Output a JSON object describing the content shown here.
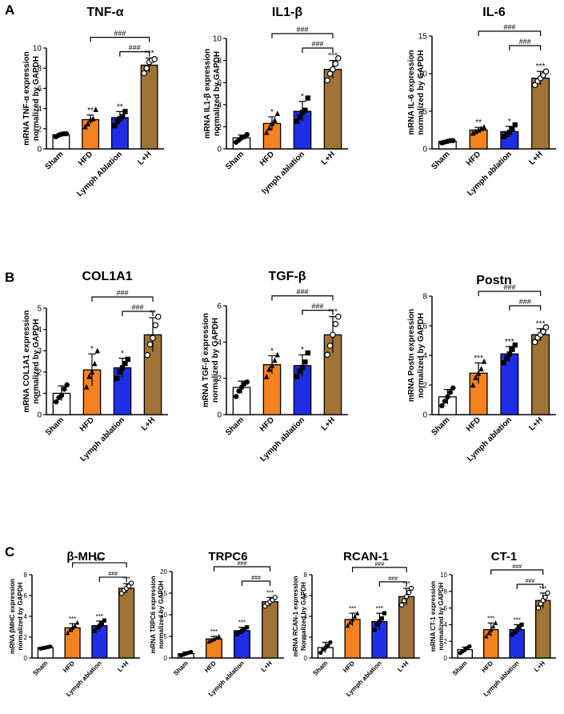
{
  "panels": [
    {
      "label": "A"
    },
    {
      "label": "B"
    },
    {
      "label": "C"
    }
  ],
  "colors": {
    "sham": "#ffffff",
    "hfd": "#f5821f",
    "lymph": "#1f2ee6",
    "lh": "#a07336",
    "outline": "#000000"
  },
  "chart_data": [
    {
      "type": "bar",
      "panel": "A",
      "title": "TNF-α",
      "ylabel": [
        "mRNA TNF-α expression",
        "normalized by GAPDH"
      ],
      "categories": [
        "Sham",
        "HFD",
        "Lymph Ablation",
        "L+H"
      ],
      "values": [
        1.4,
        2.9,
        3.1,
        8.3
      ],
      "errors": [
        0.15,
        0.45,
        0.6,
        0.7
      ],
      "points": [
        [
          1.2,
          1.35,
          1.45,
          1.5,
          1.5
        ],
        [
          2.2,
          2.5,
          2.9,
          3.0,
          3.9
        ],
        [
          2.3,
          2.7,
          3.0,
          3.2,
          3.7
        ],
        [
          7.5,
          8.0,
          8.6,
          8.8,
          8.9
        ]
      ],
      "markers": [
        "circle",
        "triangle",
        "square",
        "open-circle"
      ],
      "ylim": [
        0,
        10
      ],
      "yticks": [
        0,
        2,
        4,
        6,
        8,
        10
      ],
      "stars": [
        "",
        "**",
        "**",
        "***"
      ],
      "brackets": [
        "###",
        "###"
      ]
    },
    {
      "type": "bar",
      "panel": "A",
      "title": "IL1-β",
      "ylabel": [
        "mRNA IL1-β expression",
        "normalized by GAPDH"
      ],
      "categories": [
        "Sham",
        "HFD",
        "lymph ablation",
        "L+H"
      ],
      "values": [
        1.0,
        2.3,
        3.4,
        7.2
      ],
      "errors": [
        0.25,
        0.6,
        0.9,
        0.8
      ],
      "points": [
        [
          0.6,
          0.8,
          1.0,
          1.1,
          1.3
        ],
        [
          1.5,
          1.9,
          2.3,
          2.6,
          3.2
        ],
        [
          2.5,
          2.9,
          3.3,
          3.5,
          4.6
        ],
        [
          6.2,
          6.8,
          7.2,
          7.7,
          8.2
        ]
      ],
      "markers": [
        "circle",
        "triangle",
        "square",
        "open-circle"
      ],
      "ylim": [
        0,
        10
      ],
      "yticks": [
        0,
        2,
        4,
        6,
        8,
        10
      ],
      "stars": [
        "",
        "*",
        "*",
        "***"
      ],
      "brackets": [
        "###",
        "###"
      ]
    },
    {
      "type": "bar",
      "panel": "A",
      "title": "IL-6",
      "ylabel": [
        "mRNA IL-6 expression",
        "normalized by GAPDH"
      ],
      "categories": [
        "Sham",
        "HFD",
        "Lymph ablation",
        "L+H"
      ],
      "values": [
        1.0,
        2.5,
        2.3,
        9.4
      ],
      "errors": [
        0.1,
        0.35,
        0.7,
        0.9
      ],
      "points": [
        [
          0.8,
          0.9,
          1.0,
          1.1,
          1.1
        ],
        [
          2.1,
          2.3,
          2.5,
          2.7,
          2.9
        ],
        [
          1.6,
          1.9,
          2.2,
          2.6,
          3.2
        ],
        [
          8.5,
          9.0,
          9.4,
          9.8,
          10.3
        ]
      ],
      "markers": [
        "circle",
        "triangle",
        "square",
        "open-circle"
      ],
      "ylim": [
        0,
        15
      ],
      "yticks": [
        0,
        5,
        10,
        15
      ],
      "stars": [
        "",
        "**",
        "*",
        "***"
      ],
      "brackets": [
        "###",
        "###"
      ]
    },
    {
      "type": "bar",
      "panel": "B",
      "title": "COL1A1",
      "ylabel": [
        "mRNA COL1A1 expression",
        "normalized by GAPDH"
      ],
      "categories": [
        "Sham",
        "HFD",
        "Lymph ablation",
        "L+H"
      ],
      "values": [
        1.0,
        2.1,
        2.2,
        3.75
      ],
      "errors": [
        0.35,
        0.75,
        0.45,
        0.8
      ],
      "points": [
        [
          0.6,
          0.8,
          0.9,
          1.2,
          1.4
        ],
        [
          1.3,
          1.8,
          2.0,
          2.4,
          3.0
        ],
        [
          1.7,
          2.0,
          2.2,
          2.4,
          2.6
        ],
        [
          2.8,
          3.3,
          3.6,
          4.2,
          4.6
        ]
      ],
      "markers": [
        "circle",
        "triangle",
        "square",
        "open-circle"
      ],
      "ylim": [
        0,
        5
      ],
      "yticks": [
        0,
        1,
        2,
        3,
        4,
        5
      ],
      "stars": [
        "",
        "*",
        "*",
        "**"
      ],
      "brackets": [
        "###",
        "###"
      ]
    },
    {
      "type": "bar",
      "panel": "B",
      "title": "TGF-β",
      "ylabel": [
        "mRNA TGF-β expression",
        "normalized by GAPDH"
      ],
      "categories": [
        "Sham",
        "HFD",
        "Lymph ablation",
        "L+H"
      ],
      "values": [
        1.5,
        2.75,
        2.7,
        4.4
      ],
      "errors": [
        0.35,
        0.5,
        0.6,
        1.0
      ],
      "points": [
        [
          1.0,
          1.3,
          1.5,
          1.7,
          1.8
        ],
        [
          2.1,
          2.5,
          2.7,
          3.0,
          3.3
        ],
        [
          2.1,
          2.4,
          2.6,
          2.9,
          3.4
        ],
        [
          3.3,
          3.8,
          4.4,
          5.0,
          5.4
        ]
      ],
      "markers": [
        "circle",
        "triangle",
        "square",
        "open-circle"
      ],
      "ylim": [
        0,
        6
      ],
      "yticks": [
        0,
        2,
        4,
        6
      ],
      "stars": [
        "",
        "*",
        "*",
        "***"
      ],
      "brackets": [
        "###",
        "###"
      ]
    },
    {
      "type": "bar",
      "panel": "B",
      "title": "Postn",
      "ylabel": [
        "mRNA Postn expression",
        "normalized by GAPDH"
      ],
      "categories": [
        "Sham",
        "HFD",
        "Lymph ablation",
        "L+H"
      ],
      "values": [
        1.2,
        2.8,
        4.1,
        5.4
      ],
      "errors": [
        0.5,
        0.7,
        0.5,
        0.4
      ],
      "points": [
        [
          0.6,
          0.9,
          1.2,
          1.5,
          1.8
        ],
        [
          2.0,
          2.5,
          2.8,
          3.1,
          3.6
        ],
        [
          3.5,
          3.8,
          4.1,
          4.4,
          4.7
        ],
        [
          4.9,
          5.2,
          5.4,
          5.6,
          5.9
        ]
      ],
      "markers": [
        "circle",
        "triangle",
        "square",
        "open-circle"
      ],
      "ylim": [
        0,
        8
      ],
      "yticks": [
        0,
        2,
        4,
        6,
        8
      ],
      "stars": [
        "",
        "***",
        "***",
        "***"
      ],
      "brackets": [
        "###",
        "###"
      ]
    },
    {
      "type": "bar",
      "panel": "C",
      "title": "β-MHC",
      "ylabel": [
        "mRNA βMHC expression",
        "normalized by GAPDH"
      ],
      "categories": [
        "Sham",
        "HFD",
        "Lymph ablation",
        "L+H"
      ],
      "values": [
        1.0,
        2.9,
        3.1,
        6.7
      ],
      "errors": [
        0.1,
        0.4,
        0.45,
        0.45
      ],
      "points": [
        [
          0.9,
          0.95,
          1.0,
          1.05,
          1.1
        ],
        [
          2.4,
          2.7,
          2.9,
          3.1,
          3.4
        ],
        [
          2.6,
          2.9,
          3.1,
          3.3,
          3.6
        ],
        [
          6.2,
          6.5,
          6.7,
          6.9,
          7.2
        ]
      ],
      "markers": [
        "circle",
        "triangle",
        "square",
        "open-circle"
      ],
      "ylim": [
        0,
        8
      ],
      "yticks": [
        0,
        2,
        4,
        6,
        8
      ],
      "stars": [
        "",
        "***",
        "***",
        "***"
      ],
      "brackets": [
        "###",
        "###"
      ]
    },
    {
      "type": "bar",
      "panel": "C",
      "title": "TRPC6",
      "ylabel": [
        "mRNA TRPC6 expression",
        "normalized by GAPDH"
      ],
      "categories": [
        "Sham",
        "HFD",
        "Lymph ablation",
        "L+H"
      ],
      "values": [
        1.0,
        4.4,
        6.3,
        13.0
      ],
      "errors": [
        0.4,
        0.6,
        0.8,
        1.0
      ],
      "points": [
        [
          0.6,
          0.8,
          1.0,
          1.2,
          1.4
        ],
        [
          3.8,
          4.1,
          4.4,
          4.7,
          5.0
        ],
        [
          5.5,
          6.0,
          6.3,
          6.6,
          7.1
        ],
        [
          12.0,
          12.6,
          13.0,
          13.4,
          14.0
        ]
      ],
      "markers": [
        "circle",
        "triangle",
        "square",
        "open-circle"
      ],
      "ylim": [
        0,
        20
      ],
      "yticks": [
        0,
        5,
        10,
        15,
        20
      ],
      "stars": [
        "",
        "***",
        "***",
        "***"
      ],
      "brackets": [
        "###",
        "###"
      ]
    },
    {
      "type": "bar",
      "panel": "C",
      "title": "RCAN-1",
      "ylabel": [
        "mRNA RCAN-1 expression",
        "Normalized by GAPDH"
      ],
      "categories": [
        "Sham",
        "HFD",
        "Lymph ablation",
        "L+H"
      ],
      "values": [
        1.0,
        3.7,
        3.5,
        5.9
      ],
      "errors": [
        0.5,
        0.6,
        0.8,
        0.8
      ],
      "points": [
        [
          0.5,
          0.8,
          1.0,
          1.2,
          1.5
        ],
        [
          3.1,
          3.4,
          3.7,
          4.0,
          4.3
        ],
        [
          2.7,
          3.2,
          3.5,
          3.8,
          4.3
        ],
        [
          5.1,
          5.5,
          5.9,
          6.3,
          6.7
        ]
      ],
      "markers": [
        "circle",
        "triangle",
        "square",
        "open-circle"
      ],
      "ylim": [
        0,
        8
      ],
      "yticks": [
        0,
        2,
        4,
        6,
        8
      ],
      "stars": [
        "",
        "***",
        "***",
        "***"
      ],
      "brackets": [
        "###",
        "###"
      ]
    },
    {
      "type": "bar",
      "panel": "C",
      "title": "CT-1",
      "ylabel": [
        "mRNA CT-1 expression",
        "normalized by GAPDH"
      ],
      "categories": [
        "Sham",
        "HFD",
        "Lymph ablation",
        "L+H"
      ],
      "values": [
        1.0,
        3.4,
        3.4,
        6.9
      ],
      "errors": [
        0.3,
        0.8,
        0.6,
        0.9
      ],
      "points": [
        [
          0.6,
          0.8,
          1.0,
          1.2,
          1.4
        ],
        [
          2.6,
          3.0,
          3.4,
          3.8,
          4.2
        ],
        [
          2.8,
          3.1,
          3.4,
          3.7,
          4.0
        ],
        [
          6.0,
          6.5,
          6.9,
          7.3,
          7.8
        ]
      ],
      "markers": [
        "circle",
        "triangle",
        "square",
        "open-circle"
      ],
      "ylim": [
        0,
        10
      ],
      "yticks": [
        0,
        2,
        4,
        6,
        8,
        10
      ],
      "stars": [
        "",
        "***",
        "***",
        "***"
      ],
      "brackets": [
        "###",
        "###"
      ]
    }
  ]
}
